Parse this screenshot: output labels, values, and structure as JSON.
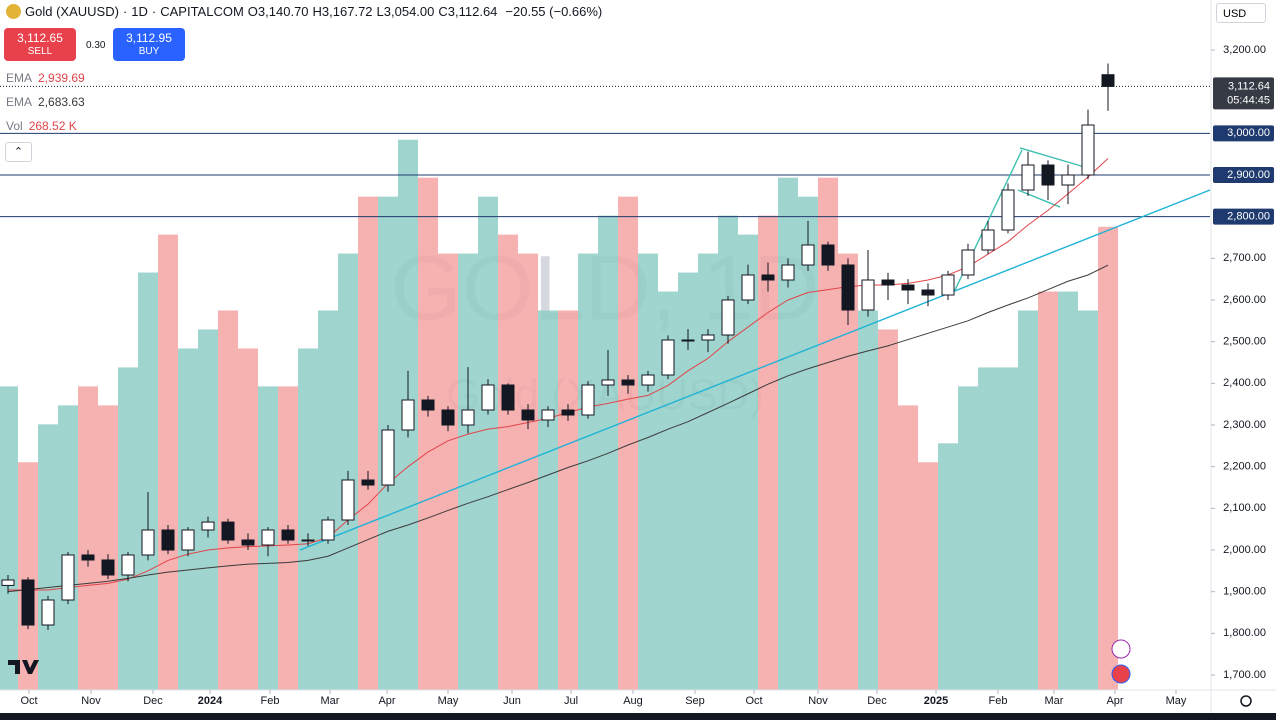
{
  "toolbar": {
    "symbol": "Gold (XAUUSD)",
    "interval": "1D",
    "source": "CAPITALCOM",
    "ohlc": [
      {
        "key": "O",
        "value": "3,140.70"
      },
      {
        "key": "H",
        "value": "3,167.72"
      },
      {
        "key": "L",
        "value": "3,054.00"
      },
      {
        "key": "C",
        "value": "3,112.64"
      }
    ],
    "change": "−20.55 (−0.66%)",
    "sell": {
      "price": "3,112.65",
      "label": "SELL"
    },
    "spread": "0.30",
    "buy": {
      "price": "3,112.95",
      "label": "BUY"
    },
    "currency": "USD"
  },
  "chart_data": {
    "type": "candlestick",
    "watermark": [
      "GOLD, 1D",
      "Gold (XAUUSD)"
    ],
    "open": [
      1915,
      1928,
      1820,
      1880,
      1988,
      1976,
      1940,
      1988,
      2048,
      2000,
      2048,
      2067,
      2024,
      2012,
      2048,
      2024,
      2024,
      2072,
      2168,
      2156,
      2288,
      2360,
      2336,
      2300,
      2336,
      2396,
      2336,
      2312,
      2336,
      2324,
      2396,
      2408,
      2396,
      2420,
      2504,
      2504,
      2516,
      2600,
      2660,
      2648,
      2684,
      2732,
      2684,
      2576,
      2648,
      2636,
      2624,
      2612,
      2660,
      2720,
      2768,
      2864,
      2924,
      2876,
      2900,
      3140.7
    ],
    "high": [
      1940,
      1935,
      1890,
      1995,
      2000,
      1990,
      1995,
      2139,
      2060,
      2055,
      2080,
      2075,
      2040,
      2055,
      2060,
      2040,
      2080,
      2190,
      2190,
      2300,
      2430,
      2370,
      2345,
      2439,
      2410,
      2400,
      2350,
      2345,
      2350,
      2405,
      2480,
      2420,
      2430,
      2515,
      2530,
      2530,
      2610,
      2685,
      2690,
      2700,
      2790,
      2740,
      2700,
      2720,
      2665,
      2650,
      2640,
      2670,
      2735,
      2790,
      2880,
      2956,
      2935,
      2925,
      3057,
      3167.72
    ],
    "low": [
      1895,
      1810,
      1808,
      1870,
      1960,
      1930,
      1925,
      1975,
      1990,
      1985,
      2030,
      2015,
      2000,
      1985,
      2015,
      2010,
      2015,
      2060,
      2145,
      2140,
      2270,
      2320,
      2285,
      2280,
      2325,
      2325,
      2290,
      2295,
      2310,
      2315,
      2370,
      2375,
      2380,
      2410,
      2480,
      2475,
      2495,
      2590,
      2620,
      2630,
      2670,
      2670,
      2540,
      2560,
      2600,
      2590,
      2585,
      2600,
      2650,
      2710,
      2760,
      2850,
      2840,
      2830,
      2890,
      3054
    ],
    "close": [
      1928,
      1820,
      1880,
      1988,
      1976,
      1940,
      1988,
      2048,
      2000,
      2048,
      2067,
      2024,
      2012,
      2048,
      2024,
      2024,
      2072,
      2168,
      2156,
      2288,
      2360,
      2336,
      2300,
      2336,
      2396,
      2336,
      2312,
      2336,
      2324,
      2396,
      2408,
      2396,
      2420,
      2504,
      2504,
      2516,
      2600,
      2660,
      2648,
      2684,
      2732,
      2684,
      2576,
      2648,
      2636,
      2624,
      2612,
      2660,
      2720,
      2768,
      2864,
      2924,
      2876,
      2900,
      3020,
      3112.64
    ],
    "up_color": "#ffffff",
    "down_color": "#131722",
    "wick_color": "#131722",
    "xlim": [
      -0.4,
      60.1
    ],
    "xticks": [
      {
        "value": 1.05,
        "label": "Oct"
      },
      {
        "value": 4.15,
        "label": "Nov"
      },
      {
        "value": 7.25,
        "label": "Dec"
      },
      {
        "value": 10.1,
        "label": "2024"
      },
      {
        "value": 13.1,
        "label": "Feb"
      },
      {
        "value": 16.1,
        "label": "Mar"
      },
      {
        "value": 18.95,
        "label": "Apr"
      },
      {
        "value": 22,
        "label": "May"
      },
      {
        "value": 25.2,
        "label": "Jun"
      },
      {
        "value": 28.15,
        "label": "Jul"
      },
      {
        "value": 31.25,
        "label": "Aug"
      },
      {
        "value": 34.35,
        "label": "Sep"
      },
      {
        "value": 37.3,
        "label": "Oct"
      },
      {
        "value": 40.5,
        "label": "Nov"
      },
      {
        "value": 43.45,
        "label": "Dec"
      },
      {
        "value": 46.4,
        "label": "2025"
      },
      {
        "value": 49.5,
        "label": "Feb"
      },
      {
        "value": 52.3,
        "label": "Mar"
      },
      {
        "value": 55.35,
        "label": "Apr"
      },
      {
        "value": 58.4,
        "label": "May"
      }
    ],
    "ylim": [
      1664,
      3320
    ],
    "yticks": [
      {
        "value": 3200,
        "label": "3,200.00"
      },
      {
        "value": 2700,
        "label": "2,700.00"
      },
      {
        "value": 2600,
        "label": "2,600.00"
      },
      {
        "value": 2500,
        "label": "2,500.00"
      },
      {
        "value": 2400,
        "label": "2,400.00"
      },
      {
        "value": 2300,
        "label": "2,300.00"
      },
      {
        "value": 2200,
        "label": "2,200.00"
      },
      {
        "value": 2100,
        "label": "2,100.00"
      },
      {
        "value": 2000,
        "label": "2,000.00"
      },
      {
        "value": 1900,
        "label": "1,900.00"
      },
      {
        "value": 1800,
        "label": "1,800.00"
      },
      {
        "value": 1700,
        "label": "1,700.00"
      }
    ],
    "last_price": {
      "label": "3,112.64",
      "countdown": "05:44:45"
    },
    "levels": [
      {
        "value": 3000,
        "label": "3,000.00"
      },
      {
        "value": 2900,
        "label": "2,900.00"
      },
      {
        "value": 2800,
        "label": "2,800.00"
      }
    ],
    "level_color": "#1e3a6e",
    "drawings": [
      {
        "x": [
          14.6,
          60.1
        ],
        "y": [
          2000,
          2864
        ],
        "color": "#1fb3d6"
      },
      {
        "x": [
          47.35,
          50.7
        ],
        "y": [
          2624,
          2960
        ],
        "color": "#3dbfb0"
      },
      {
        "x": [
          50.6,
          53.7
        ],
        "y": [
          2965,
          2921
        ],
        "color": "#3dbfb0"
      },
      {
        "x": [
          50.5,
          52.6
        ],
        "y": [
          2864,
          2823
        ],
        "color": "#3dbfb0"
      }
    ],
    "indicators": [
      {
        "name": "EMA",
        "value_label": "2,939.69",
        "color": "#e0454a",
        "values": [
          1904,
          1904,
          1904,
          1910,
          1915,
          1920,
          1930,
          1950,
          1975,
          1990,
          2000,
          2005,
          2008,
          2010,
          2012,
          2015,
          2030,
          2072,
          2110,
          2160,
          2200,
          2235,
          2262,
          2278,
          2290,
          2296,
          2306,
          2316,
          2330,
          2343,
          2352,
          2362,
          2371,
          2395,
          2430,
          2460,
          2500,
          2535,
          2570,
          2600,
          2618,
          2625,
          2632,
          2636,
          2636,
          2640,
          2648,
          2660,
          2680,
          2710,
          2740,
          2780,
          2815,
          2855,
          2895,
          2939.69
        ]
      },
      {
        "name": "EMA",
        "value_label": "2,683.63",
        "color": "#3b3b3b",
        "values": [
          1900,
          1905,
          1910,
          1915,
          1920,
          1925,
          1932,
          1940,
          1947,
          1952,
          1957,
          1962,
          1966,
          1968,
          1970,
          1975,
          1985,
          2005,
          2025,
          2045,
          2060,
          2077,
          2095,
          2112,
          2128,
          2145,
          2162,
          2180,
          2198,
          2214,
          2232,
          2252,
          2270,
          2290,
          2308,
          2330,
          2352,
          2375,
          2398,
          2418,
          2435,
          2450,
          2465,
          2478,
          2490,
          2505,
          2520,
          2535,
          2550,
          2570,
          2588,
          2605,
          2625,
          2645,
          2660,
          2683.63
        ]
      }
    ],
    "volume": {
      "name": "Vol",
      "value_label": "268.52 K",
      "ylim": [
        0,
        400
      ],
      "up_color": "#8fcdc5",
      "down_color": "#f4a3a3",
      "values": [
        176,
        132,
        154,
        165,
        176,
        165,
        187,
        242,
        264,
        198,
        209,
        220,
        198,
        176,
        176,
        198,
        220,
        253,
        286,
        286,
        319,
        297,
        253,
        253,
        286,
        264,
        253,
        220,
        220,
        253,
        275,
        286,
        253,
        231,
        242,
        253,
        275,
        264,
        275,
        297,
        286,
        297,
        253,
        220,
        209,
        165,
        132,
        143,
        176,
        187,
        187,
        220,
        231,
        231,
        220,
        268.52
      ]
    }
  }
}
